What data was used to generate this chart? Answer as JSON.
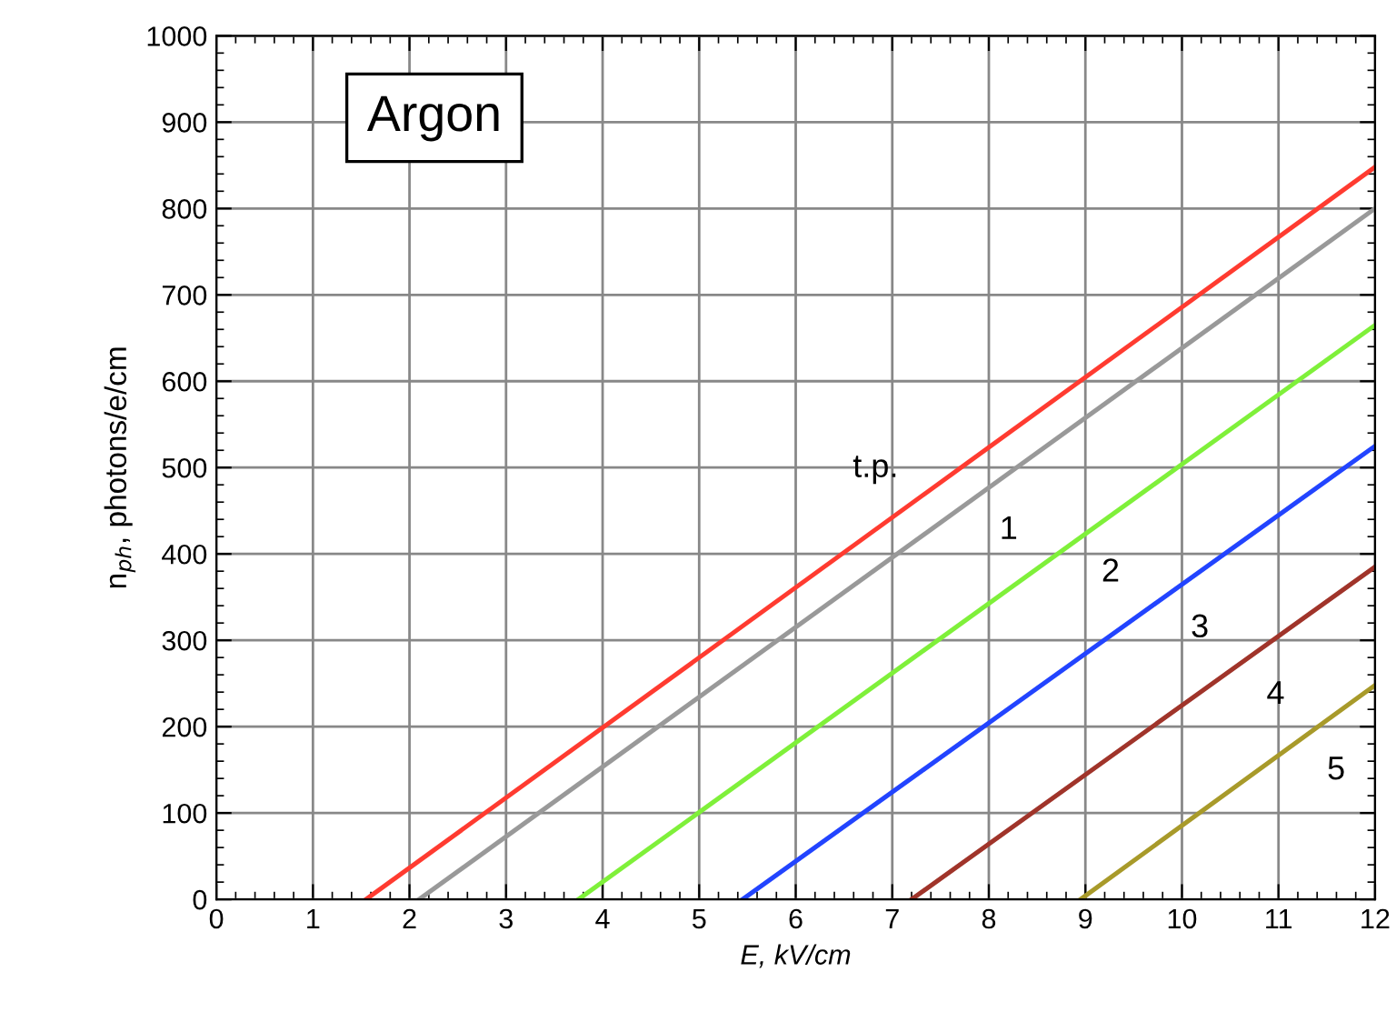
{
  "chart_data": {
    "type": "line",
    "xlabel": "E, kV/cm",
    "ylabel": "n$_{ph}$, photons/e/cm",
    "annotations": [
      "Argon"
    ],
    "series": [
      {
        "name": "t.p.",
        "color": "#ff3b30",
        "x": [
          1.55,
          12
        ],
        "values": [
          0,
          848
        ]
      },
      {
        "name": "1",
        "color": "#999999",
        "x": [
          2.1,
          12
        ],
        "values": [
          0,
          800
        ]
      },
      {
        "name": "2",
        "color": "#7ff03a",
        "x": [
          3.75,
          12
        ],
        "values": [
          0,
          665
        ]
      },
      {
        "name": "3",
        "color": "#2244ff",
        "x": [
          5.45,
          12
        ],
        "values": [
          0,
          525
        ]
      },
      {
        "name": "4",
        "color": "#a0342a",
        "x": [
          7.2,
          12
        ],
        "values": [
          0,
          385
        ]
      },
      {
        "name": "5",
        "color": "#a89a2a",
        "x": [
          8.95,
          12
        ],
        "values": [
          0,
          248
        ]
      }
    ],
    "xlim": [
      0,
      12
    ],
    "xticks": [
      0,
      1,
      2,
      3,
      4,
      5,
      6,
      7,
      8,
      9,
      10,
      11,
      12
    ],
    "ylim": [
      0,
      1000
    ],
    "yticks": [
      0,
      100,
      200,
      300,
      400,
      500,
      600,
      700,
      800,
      900,
      1000
    ],
    "grid": true,
    "marker": "none",
    "line_style": "solid"
  }
}
